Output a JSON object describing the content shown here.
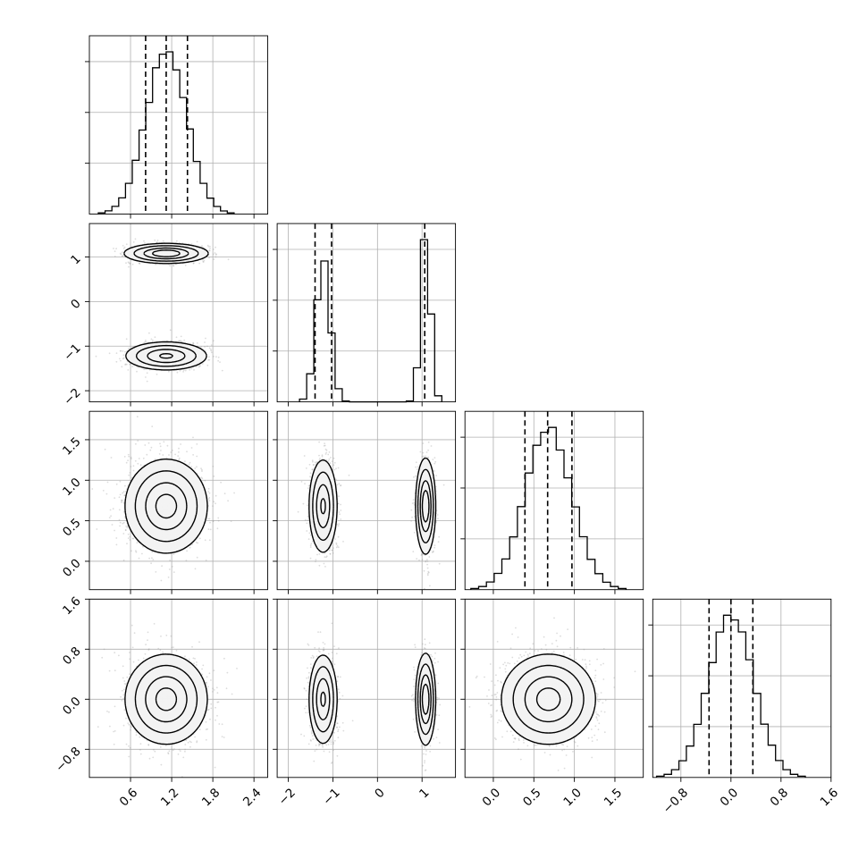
{
  "chart_data": {
    "type": "corner",
    "title": "",
    "n_params": 4,
    "params": [
      {
        "label": "",
        "lim": [
          0.0,
          2.6
        ],
        "ticks": [
          0.6,
          1.2,
          1.8,
          2.4
        ],
        "tick_labels": [
          "0.6",
          "1.2",
          "1.8",
          "2.4"
        ],
        "quantiles": [
          0.82,
          1.12,
          1.43
        ]
      },
      {
        "label": "",
        "lim": [
          -2.25,
          1.75
        ],
        "ticks": [
          -2,
          -1,
          0,
          1
        ],
        "tick_labels": [
          "−2",
          "−1",
          "0",
          "1"
        ],
        "quantiles": [
          -1.4,
          -1.03,
          1.06
        ]
      },
      {
        "label": "",
        "lim": [
          -0.35,
          1.85
        ],
        "ticks": [
          0.0,
          0.5,
          1.0,
          1.5
        ],
        "tick_labels": [
          "0.0",
          "0.5",
          "1.0",
          "1.5"
        ],
        "quantiles": [
          0.39,
          0.67,
          0.97
        ]
      },
      {
        "label": "",
        "lim": [
          -1.25,
          1.6
        ],
        "ticks": [
          -0.8,
          0.0,
          0.8,
          1.6
        ],
        "tick_labels": [
          "−0.8",
          "0.0",
          "0.8",
          "1.6"
        ],
        "quantiles": [
          -0.35,
          0.0,
          0.35
        ]
      }
    ],
    "distributions": [
      {
        "components": [
          {
            "w": 1.0,
            "mu": 1.12,
            "sd": 0.3
          }
        ]
      },
      {
        "components": [
          {
            "w": 0.55,
            "mu": -1.22,
            "sd": 0.16
          },
          {
            "w": 0.45,
            "mu": 1.08,
            "sd": 0.11
          }
        ]
      },
      {
        "components": [
          {
            "w": 1.0,
            "mu": 0.68,
            "sd": 0.29
          }
        ]
      },
      {
        "components": [
          {
            "w": 1.0,
            "mu": 0.0,
            "sd": 0.36
          }
        ]
      }
    ],
    "histogram_bins": 20,
    "contour_levels": [
      0.118,
      0.393,
      0.675,
      0.865
    ],
    "grid": true,
    "colors": {
      "line": "#000000",
      "grid": "#b0b0b0",
      "fill_dark": "#2b2b2b",
      "fill_light": "#f3f3f3",
      "points": "#9a9a9a"
    }
  }
}
